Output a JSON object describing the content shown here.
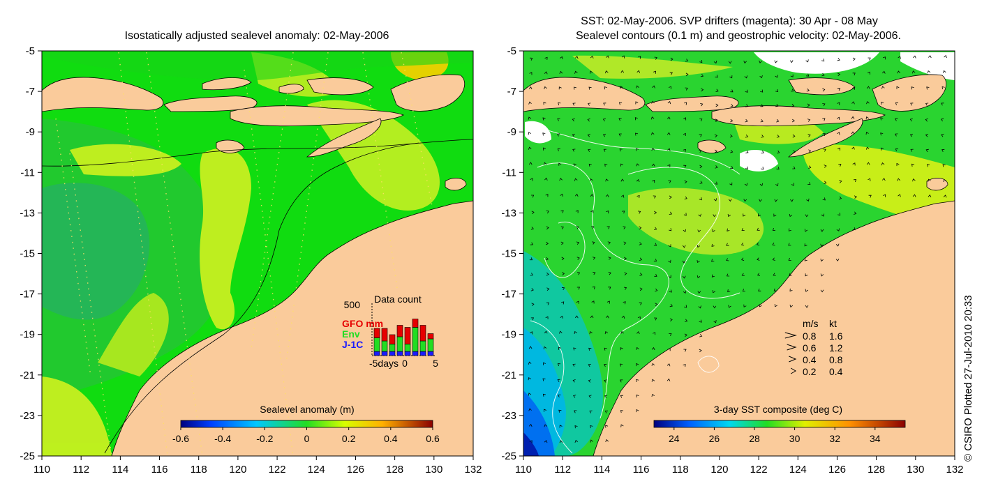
{
  "credit": "© CSIRO Plotted 27-Jul-2010 20:33",
  "chart_data": [
    {
      "type": "heatmap",
      "title": "Isostatically adjusted sealevel anomaly: 02-May-2006",
      "xlim": [
        110,
        132
      ],
      "ylim": [
        -25,
        -5
      ],
      "xticks": [
        110,
        112,
        114,
        116,
        118,
        120,
        122,
        124,
        126,
        128,
        130,
        132
      ],
      "yticks": [
        -5,
        -7,
        -9,
        -11,
        -13,
        -15,
        -17,
        -19,
        -21,
        -23,
        -25
      ],
      "colorbar": {
        "label": "Sealevel anomaly (m)",
        "min": -0.6,
        "max": 0.6,
        "ticks": [
          -0.6,
          -0.4,
          -0.2,
          0,
          0.2,
          0.4,
          0.6
        ],
        "tick_labels": [
          "-0.6",
          "-0.4",
          "-0.2",
          "0",
          "0.2",
          "0.4",
          "0.6"
        ]
      },
      "inset": {
        "title": "Data count",
        "ymax_label": "500",
        "series_labels": [
          {
            "name": "GFO mm",
            "color": "#e60000"
          },
          {
            "name": "Env",
            "color": "#22dd22"
          },
          {
            "name": "J-1C",
            "color": "#1a1aff"
          }
        ],
        "x_labels": [
          "-5days",
          "0",
          "5"
        ],
        "bars": [
          {
            "day": -4,
            "j1": 40,
            "env": 130,
            "gfo": 90
          },
          {
            "day": -3,
            "j1": 40,
            "env": 100,
            "gfo": 120
          },
          {
            "day": -2,
            "j1": 40,
            "env": 70,
            "gfo": 90
          },
          {
            "day": -1,
            "j1": 40,
            "env": 140,
            "gfo": 110
          },
          {
            "day": 0,
            "j1": 40,
            "env": 70,
            "gfo": 160
          },
          {
            "day": 1,
            "j1": 40,
            "env": 230,
            "gfo": 80
          },
          {
            "day": 2,
            "j1": 40,
            "env": 100,
            "gfo": 150
          },
          {
            "day": 3,
            "j1": 40,
            "env": 120,
            "gfo": 50
          }
        ]
      }
    },
    {
      "type": "heatmap",
      "title_lines": [
        "SST: 02-May-2006. SVP drifters (magenta): 30 Apr - 08 May",
        "Sealevel contours (0.1 m) and geostrophic velocity: 02-May-2006."
      ],
      "xlim": [
        110,
        132
      ],
      "ylim": [
        -25,
        -5
      ],
      "xticks": [
        110,
        112,
        114,
        116,
        118,
        120,
        122,
        124,
        126,
        128,
        130,
        132
      ],
      "yticks": [
        -5,
        -7,
        -9,
        -11,
        -13,
        -15,
        -17,
        -19,
        -21,
        -23,
        -25
      ],
      "colorbar": {
        "label": "3-day SST composite (deg C)",
        "min": 23,
        "max": 35.5,
        "ticks": [
          24,
          26,
          28,
          30,
          32,
          34
        ],
        "tick_labels": [
          "24",
          "26",
          "28",
          "30",
          "32",
          "34"
        ]
      },
      "velocity_legend": {
        "headers": [
          "m/s",
          "kt"
        ],
        "rows": [
          {
            "ms": "0.8",
            "kt": "1.6",
            "speed": 0.8
          },
          {
            "ms": "0.6",
            "kt": "1.2",
            "speed": 0.6
          },
          {
            "ms": "0.4",
            "kt": "0.8",
            "speed": 0.4
          },
          {
            "ms": "0.2",
            "kt": "0.4",
            "speed": 0.2
          }
        ]
      }
    }
  ]
}
